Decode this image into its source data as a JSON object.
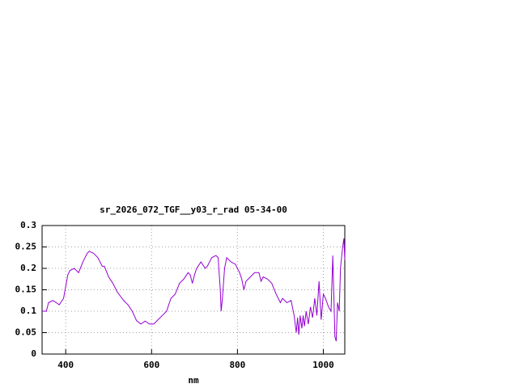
{
  "chart_data": {
    "type": "line",
    "title": "sr_2026_072_TGF__y03_r_rad 05-34-00",
    "xlabel": "nm",
    "xlim": [
      345,
      1050
    ],
    "xticks": [
      400,
      600,
      800,
      1000
    ],
    "ylim": [
      0,
      0.3
    ],
    "yticks": [
      0,
      0.05,
      0.1,
      0.15,
      0.2,
      0.25,
      0.3
    ],
    "grid": true,
    "series": [
      {
        "color": "#9400d3",
        "x": [
          345,
          355,
          360,
          370,
          378,
          385,
          395,
          405,
          410,
          420,
          430,
          440,
          450,
          455,
          465,
          475,
          485,
          490,
          500,
          510,
          520,
          535,
          545,
          555,
          565,
          575,
          585,
          595,
          605,
          615,
          625,
          635,
          645,
          655,
          665,
          675,
          685,
          690,
          695,
          700,
          705,
          715,
          725,
          730,
          740,
          750,
          755,
          760,
          762,
          765,
          770,
          775,
          785,
          795,
          805,
          810,
          815,
          820,
          830,
          840,
          850,
          855,
          860,
          870,
          880,
          890,
          900,
          905,
          915,
          925,
          932,
          937,
          940,
          943,
          946,
          950,
          953,
          956,
          960,
          965,
          970,
          975,
          980,
          985,
          990,
          995,
          1000,
          1005,
          1012,
          1018,
          1022,
          1027,
          1030,
          1033,
          1037,
          1040,
          1045,
          1048,
          1050
        ],
        "values": [
          0.1,
          0.1,
          0.12,
          0.125,
          0.12,
          0.115,
          0.13,
          0.185,
          0.195,
          0.2,
          0.19,
          0.215,
          0.235,
          0.24,
          0.235,
          0.225,
          0.205,
          0.205,
          0.18,
          0.165,
          0.145,
          0.125,
          0.115,
          0.1,
          0.078,
          0.07,
          0.077,
          0.07,
          0.07,
          0.08,
          0.09,
          0.1,
          0.13,
          0.14,
          0.165,
          0.175,
          0.19,
          0.185,
          0.165,
          0.185,
          0.2,
          0.215,
          0.2,
          0.205,
          0.225,
          0.23,
          0.225,
          0.15,
          0.1,
          0.13,
          0.2,
          0.225,
          0.215,
          0.21,
          0.19,
          0.175,
          0.15,
          0.17,
          0.18,
          0.19,
          0.19,
          0.17,
          0.18,
          0.175,
          0.165,
          0.14,
          0.12,
          0.13,
          0.12,
          0.125,
          0.09,
          0.05,
          0.085,
          0.045,
          0.09,
          0.06,
          0.09,
          0.065,
          0.1,
          0.07,
          0.11,
          0.085,
          0.13,
          0.09,
          0.17,
          0.08,
          0.14,
          0.13,
          0.11,
          0.1,
          0.23,
          0.04,
          0.03,
          0.12,
          0.1,
          0.2,
          0.25,
          0.27,
          0.22
        ]
      }
    ]
  }
}
